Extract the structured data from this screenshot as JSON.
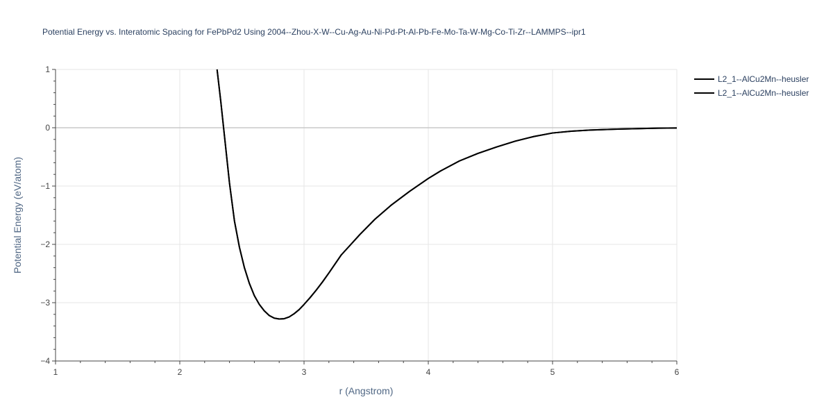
{
  "chart_data": {
    "type": "line",
    "title": "Potential Energy vs. Interatomic Spacing for FePbPd2 Using 2004--Zhou-X-W--Cu-Ag-Au-Ni-Pd-Pt-Al-Pb-Fe-Mo-Ta-W-Mg-Co-Ti-Zr--LAMMPS--ipr1",
    "xlabel": "r (Angstrom)",
    "ylabel": "Potential Energy (eV/atom)",
    "xlim": [
      1,
      6
    ],
    "ylim": [
      -4,
      1
    ],
    "x_ticks": [
      1,
      2,
      3,
      4,
      5,
      6
    ],
    "x_tick_labels": [
      "1",
      "2",
      "3",
      "4",
      "5",
      "6"
    ],
    "y_ticks": [
      -4,
      -3,
      -2,
      -1,
      0,
      1
    ],
    "y_tick_labels": [
      "−4",
      "−3",
      "−2",
      "−1",
      "0",
      "1"
    ],
    "grid": true,
    "legend_position": "top-right",
    "line_color": "#000000",
    "series": [
      {
        "name": "L2_1--AlCu2Mn--heusler",
        "x": [
          2.3,
          2.33,
          2.36,
          2.4,
          2.44,
          2.48,
          2.52,
          2.56,
          2.6,
          2.64,
          2.68,
          2.72,
          2.76,
          2.8,
          2.84,
          2.88,
          2.92,
          2.96,
          3.0,
          3.05,
          3.1,
          3.15,
          3.2,
          3.3,
          3.45,
          3.57,
          3.7,
          3.85,
          4.0,
          4.1,
          4.25,
          4.4,
          4.55,
          4.7,
          4.85,
          5.0,
          5.15,
          5.3,
          5.5,
          5.7,
          5.85,
          6.0
        ],
        "y": [
          1.0,
          0.45,
          -0.15,
          -0.95,
          -1.6,
          -2.05,
          -2.4,
          -2.67,
          -2.88,
          -3.03,
          -3.14,
          -3.22,
          -3.265,
          -3.28,
          -3.275,
          -3.245,
          -3.19,
          -3.12,
          -3.03,
          -2.91,
          -2.78,
          -2.64,
          -2.49,
          -2.18,
          -1.83,
          -1.57,
          -1.33,
          -1.09,
          -0.87,
          -0.74,
          -0.57,
          -0.44,
          -0.33,
          -0.23,
          -0.15,
          -0.09,
          -0.06,
          -0.04,
          -0.025,
          -0.015,
          -0.008,
          -0.004
        ]
      },
      {
        "name": "L2_1--AlCu2Mn--heusler",
        "x": [
          2.3,
          2.33,
          2.36,
          2.4,
          2.44,
          2.48,
          2.52,
          2.56,
          2.6,
          2.64,
          2.68,
          2.72,
          2.76,
          2.8,
          2.84,
          2.88,
          2.92,
          2.96,
          3.0,
          3.05,
          3.1,
          3.15,
          3.2,
          3.3,
          3.45,
          3.57,
          3.7,
          3.85,
          4.0,
          4.1,
          4.25,
          4.4,
          4.55,
          4.7,
          4.85,
          5.0,
          5.15,
          5.3,
          5.5,
          5.7,
          5.85,
          6.0
        ],
        "y": [
          1.0,
          0.45,
          -0.15,
          -0.95,
          -1.6,
          -2.05,
          -2.4,
          -2.67,
          -2.88,
          -3.03,
          -3.14,
          -3.22,
          -3.265,
          -3.28,
          -3.275,
          -3.245,
          -3.19,
          -3.12,
          -3.03,
          -2.91,
          -2.78,
          -2.64,
          -2.49,
          -2.18,
          -1.83,
          -1.57,
          -1.33,
          -1.09,
          -0.87,
          -0.74,
          -0.57,
          -0.44,
          -0.33,
          -0.23,
          -0.15,
          -0.09,
          -0.06,
          -0.04,
          -0.025,
          -0.015,
          -0.008,
          -0.004
        ]
      }
    ]
  }
}
